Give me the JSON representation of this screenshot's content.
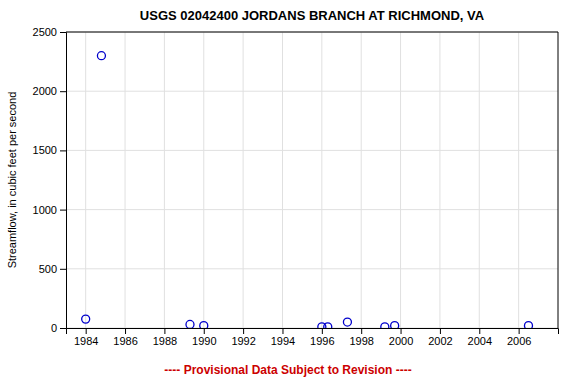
{
  "chart_data": {
    "type": "scatter",
    "title": "USGS 02042400 JORDANS BRANCH AT RICHMOND, VA",
    "ylabel": "Streamflow, in cubic feet per second",
    "x": [
      1984.0,
      1984.8,
      1989.3,
      1990.0,
      1996.0,
      1996.3,
      1997.3,
      1999.2,
      1999.7,
      2006.5
    ],
    "values": [
      75,
      2300,
      30,
      20,
      10,
      10,
      50,
      10,
      20,
      20
    ],
    "color": "#0000cc",
    "marker": "open-circle",
    "xlim": [
      1983.0,
      2008.0
    ],
    "ylim": [
      0,
      2500
    ],
    "xticks": [
      1984,
      1986,
      1988,
      1990,
      1992,
      1994,
      1996,
      1998,
      2000,
      2002,
      2004,
      2006
    ],
    "yticks": [
      0,
      500,
      1000,
      1500,
      2000,
      2500
    ],
    "grid": true,
    "annotations": [
      {
        "text": "---- Provisional Data Subject to Revision ----",
        "color": "#cc0000"
      }
    ]
  }
}
